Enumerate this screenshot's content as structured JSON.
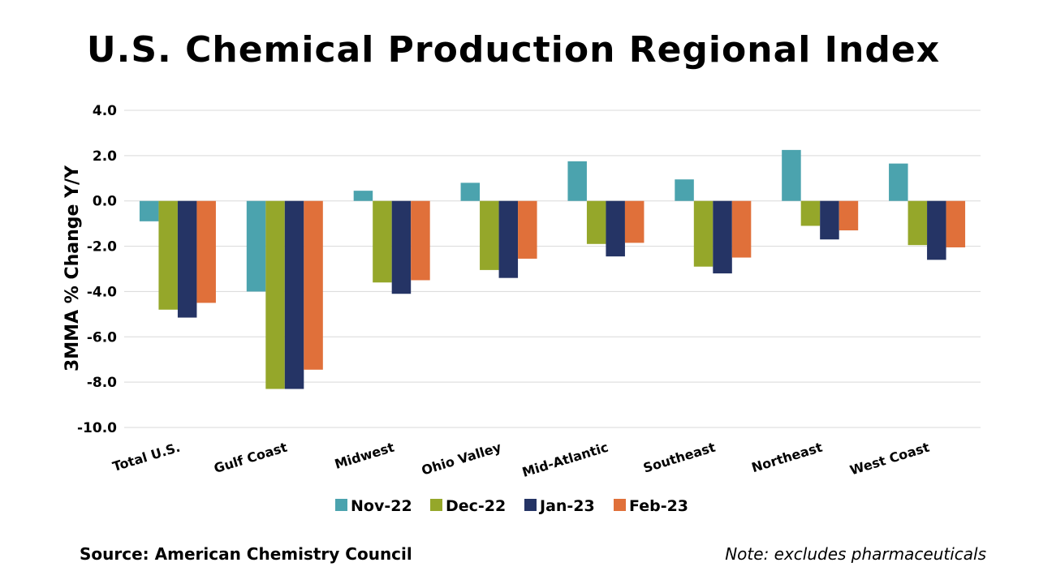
{
  "title": "U.S. Chemical Production Regional Index",
  "source": "Source: American Chemistry Council",
  "note": "Note: excludes pharmaceuticals",
  "chart_data": {
    "type": "bar",
    "title": "U.S. Chemical Production Regional Index",
    "xlabel": "",
    "ylabel": "3MMA % Change Y/Y",
    "ylim": [
      -10.0,
      4.0
    ],
    "yticks": [
      4.0,
      2.0,
      0.0,
      -2.0,
      -4.0,
      -6.0,
      -8.0,
      -10.0
    ],
    "ytick_labels": [
      "4.0",
      "2.0",
      "0.0",
      "-2.0",
      "-4.0",
      "-6.0",
      "-8.0",
      "-10.0"
    ],
    "grid": true,
    "legend_position": "bottom",
    "categories": [
      "Total U.S.",
      "Gulf Coast",
      "Midwest",
      "Ohio Valley",
      "Mid-Atlantic",
      "Southeast",
      "Northeast",
      "West Coast"
    ],
    "series": [
      {
        "name": "Nov-22",
        "color": "#4BA3AE",
        "values": [
          -0.9,
          -4.0,
          0.45,
          0.8,
          1.75,
          0.95,
          2.25,
          1.65
        ]
      },
      {
        "name": "Dec-22",
        "color": "#95A72A",
        "values": [
          -4.8,
          -8.3,
          -3.6,
          -3.05,
          -1.9,
          -2.9,
          -1.1,
          -1.95
        ]
      },
      {
        "name": "Jan-23",
        "color": "#253465",
        "values": [
          -5.15,
          -8.3,
          -4.1,
          -3.4,
          -2.45,
          -3.2,
          -1.7,
          -2.6
        ]
      },
      {
        "name": "Feb-23",
        "color": "#E0703A",
        "values": [
          -4.5,
          -7.45,
          -3.5,
          -2.55,
          -1.85,
          -2.5,
          -1.3,
          -2.05
        ]
      }
    ]
  }
}
